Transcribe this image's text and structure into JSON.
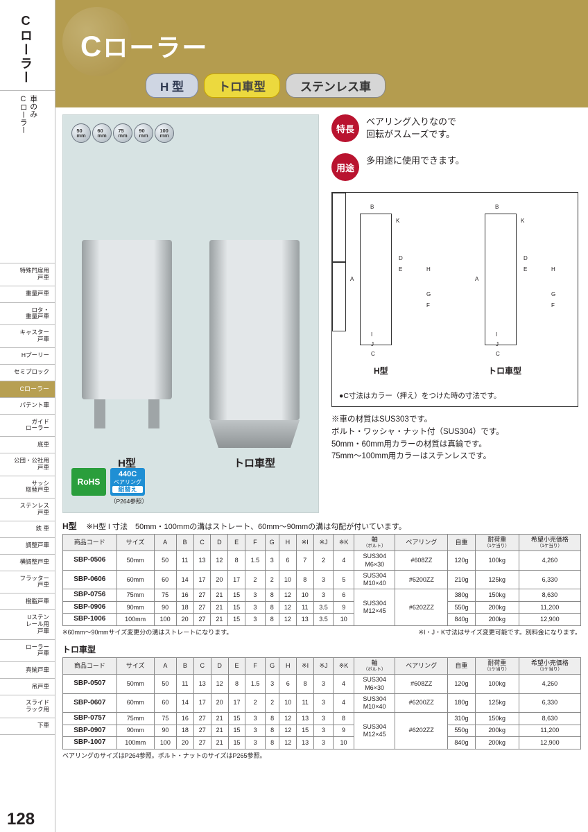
{
  "sidebar": {
    "top_title": "Cローラー",
    "sub_title": "車のみ\nCローラー",
    "nav": [
      {
        "label": "特殊門扉用\n戸車"
      },
      {
        "label": "重量戸車"
      },
      {
        "label": "ロタ・\n重量戸車"
      },
      {
        "label": "キャスター\n戸車"
      },
      {
        "label": "Hプーリー"
      },
      {
        "label": "セミプロック"
      },
      {
        "label": "Cローラー",
        "active": true
      },
      {
        "label": "パテント車"
      },
      {
        "label": "ガイド\nローラー"
      },
      {
        "label": "底車"
      },
      {
        "label": "公団・公社用\n戸車"
      },
      {
        "label": "サッシ\n取替戸車"
      },
      {
        "label": "ステンレス\n戸車"
      },
      {
        "label": "鉄 車"
      },
      {
        "label": "調整戸車"
      },
      {
        "label": "横調整戸車"
      },
      {
        "label": "フラッター\n戸車"
      },
      {
        "label": "樹脂戸車"
      },
      {
        "label": "Uステン\nレール用\n戸車"
      },
      {
        "label": "ローラー\n戸車"
      },
      {
        "label": "真鍮戸車"
      },
      {
        "label": "吊戸車"
      },
      {
        "label": "スライド\nラック用"
      },
      {
        "label": "下車"
      }
    ]
  },
  "hero": {
    "title_c": "C",
    "title_rest": "ローラー",
    "pills": [
      {
        "label": "H 型",
        "cls": "pill-h"
      },
      {
        "label": "トロ車型",
        "cls": "pill-toro"
      },
      {
        "label": "ステンレス車",
        "cls": "pill-sus"
      }
    ]
  },
  "size_discs": [
    "50\nmm",
    "60\nmm",
    "75\nmm",
    "90\nmm",
    "100\nmm"
  ],
  "wheel_labels": {
    "h": "H型",
    "toro": "トロ車型"
  },
  "features": {
    "t_label": "特長",
    "t_text": "ベアリング入りなので\n回転がスムーズです。",
    "u_label": "用途",
    "u_text": "多用途に使用できます。"
  },
  "diagram": {
    "type_h": "H型",
    "type_t": "トロ車型",
    "footnote": "●C寸法はカラー（押え）をつけた時の寸法です。",
    "labels": [
      "A",
      "B",
      "C",
      "D",
      "E",
      "F",
      "G",
      "H",
      "I",
      "J",
      "K"
    ]
  },
  "notes_under": "※車の材質はSUS303です。\nボルト・ワッシャ・ナット付（SUS304）です。\n50mm・60mm用カラーの材質は真鍮です。\n75mm〜100mm用カラーはステンレスです。",
  "badges": {
    "rohs": "RoHS",
    "bearing_top": "440C",
    "bearing_mid": "ベアリング",
    "bearing_bot": "組替え",
    "note": "（P264参照）"
  },
  "table_h": {
    "title": "H型",
    "note": "※H型 I 寸法　50mm・100mmの溝はストレート、60mm〜90mmの溝は勾配が付いています。",
    "columns": [
      "商品コード",
      "サイズ",
      "A",
      "B",
      "C",
      "D",
      "E",
      "F",
      "G",
      "H",
      "※I",
      "※J",
      "※K",
      "軸",
      "ベアリング",
      "自重",
      "耐荷重",
      "希望小売価格"
    ],
    "col_subs": {
      "13": "（ボルト）",
      "16": "（1ケ当り）",
      "17": "（1ケ当り）"
    },
    "rows": [
      [
        "SBP-0506",
        "50mm",
        "50",
        "11",
        "13",
        "12",
        "8",
        "1.5",
        "3",
        "6",
        "7",
        "2",
        "4",
        "SUS304\nM6×30",
        "#608ZZ",
        "120g",
        "100kg",
        "4,260"
      ],
      [
        "SBP-0606",
        "60mm",
        "60",
        "14",
        "17",
        "20",
        "17",
        "2",
        "2",
        "10",
        "8",
        "3",
        "5",
        "SUS304\nM10×40",
        "#6200ZZ",
        "210g",
        "125kg",
        "6,330"
      ],
      [
        "SBP-0756",
        "75mm",
        "75",
        "16",
        "27",
        "21",
        "15",
        "3",
        "8",
        "12",
        "10",
        "3",
        "6",
        "",
        "",
        "380g",
        "150kg",
        "8,630"
      ],
      [
        "SBP-0906",
        "90mm",
        "90",
        "18",
        "27",
        "21",
        "15",
        "3",
        "8",
        "12",
        "11",
        "3.5",
        "9",
        "SUS304\nM12×45",
        "#6202ZZ",
        "550g",
        "200kg",
        "11,200"
      ],
      [
        "SBP-1006",
        "100mm",
        "100",
        "20",
        "27",
        "21",
        "15",
        "3",
        "8",
        "12",
        "13",
        "3.5",
        "10",
        "",
        "",
        "840g",
        "200kg",
        "12,900"
      ]
    ],
    "footnote_l": "※60mm〜90mmサイズ変更分の溝はストレートになります。",
    "footnote_r": "※I・J・K寸法はサイズ変更可能です。別料金になります。"
  },
  "table_t": {
    "title": "トロ車型",
    "columns": [
      "商品コード",
      "サイズ",
      "A",
      "B",
      "C",
      "D",
      "E",
      "F",
      "G",
      "H",
      "※I",
      "※J",
      "※K",
      "軸",
      "ベアリング",
      "自重",
      "耐荷重",
      "希望小売価格"
    ],
    "col_subs": {
      "13": "（ボルト）",
      "16": "（1ケ当り）",
      "17": "（1ケ当り）"
    },
    "rows": [
      [
        "SBP-0507",
        "50mm",
        "50",
        "11",
        "13",
        "12",
        "8",
        "1.5",
        "3",
        "6",
        "8",
        "3",
        "4",
        "SUS304\nM6×30",
        "#608ZZ",
        "120g",
        "100kg",
        "4,260"
      ],
      [
        "SBP-0607",
        "60mm",
        "60",
        "14",
        "17",
        "20",
        "17",
        "2",
        "2",
        "10",
        "11",
        "3",
        "4",
        "SUS304\nM10×40",
        "#6200ZZ",
        "180g",
        "125kg",
        "6,330"
      ],
      [
        "SBP-0757",
        "75mm",
        "75",
        "16",
        "27",
        "21",
        "15",
        "3",
        "8",
        "12",
        "13",
        "3",
        "8",
        "",
        "",
        "310g",
        "150kg",
        "8,630"
      ],
      [
        "SBP-0907",
        "90mm",
        "90",
        "18",
        "27",
        "21",
        "15",
        "3",
        "8",
        "12",
        "15",
        "3",
        "9",
        "SUS304\nM12×45",
        "#6202ZZ",
        "550g",
        "200kg",
        "11,200"
      ],
      [
        "SBP-1007",
        "100mm",
        "100",
        "20",
        "27",
        "21",
        "15",
        "3",
        "8",
        "12",
        "13",
        "3",
        "10",
        "",
        "",
        "840g",
        "200kg",
        "12,900"
      ]
    ],
    "footnote": "ベアリングのサイズはP264参照。ボルト・ナットのサイズはP265参照。"
  },
  "page_num": "128"
}
